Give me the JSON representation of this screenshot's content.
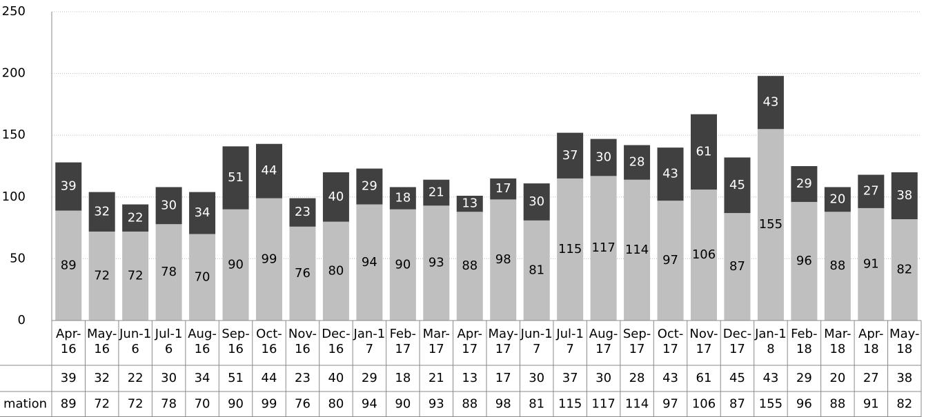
{
  "chart_data": {
    "type": "stacked_bar",
    "categories": [
      "Apr-16",
      "May-16",
      "Jun-16",
      "Jul-16",
      "Aug-16",
      "Sep-16",
      "Oct-16",
      "Nov-16",
      "Dec-16",
      "Jan-17",
      "Feb-17",
      "Mar-17",
      "Apr-17",
      "May-17",
      "Jun-17",
      "Jul-17",
      "Aug-17",
      "Sep-17",
      "Oct-17",
      "Nov-17",
      "Dec-17",
      "Jan-18",
      "Feb-18",
      "Mar-18",
      "Apr-18",
      "May-18"
    ],
    "series": [
      {
        "name": "mation",
        "color": "#bfbfbf",
        "values": [
          89,
          72,
          72,
          78,
          70,
          90,
          99,
          76,
          80,
          94,
          90,
          93,
          88,
          98,
          81,
          115,
          117,
          114,
          97,
          106,
          87,
          155,
          96,
          88,
          91,
          82
        ]
      },
      {
        "color": "#404040",
        "values": [
          39,
          32,
          22,
          30,
          34,
          51,
          44,
          23,
          40,
          29,
          18,
          21,
          13,
          17,
          30,
          37,
          30,
          28,
          43,
          61,
          45,
          43,
          29,
          20,
          27,
          38
        ]
      }
    ],
    "ylim": [
      0,
      250
    ],
    "yticks": [
      0,
      50,
      100,
      150,
      200,
      250
    ],
    "grid": true,
    "data_table": true
  }
}
